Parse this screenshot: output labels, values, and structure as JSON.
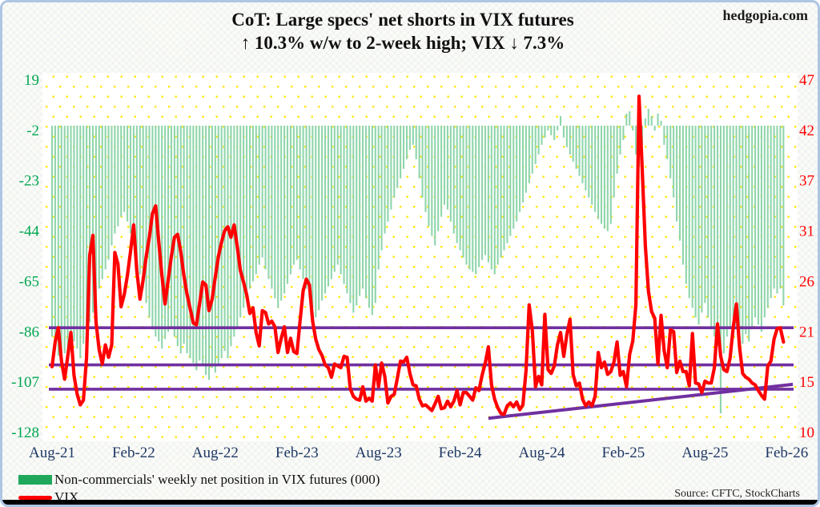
{
  "header": {
    "site": "hedgopia.com",
    "title_line1": "CoT: Large specs' net shorts in VIX futures",
    "title_line2": "↑ 10.3% w/w to 2-week high; VIX ↓ 7.3%"
  },
  "legend": {
    "series1_label": "Non-commercials' weekly net position in VIX futures (000)",
    "series2_label": "VIX"
  },
  "source_note": "Source: CFTC, StockCharts",
  "chart_data": {
    "type": "bar+line",
    "title": "CoT: Large specs' net shorts in VIX futures ↑ 10.3% w/w to 2-week high; VIX ↓ 7.3%",
    "x_tick_labels": [
      "Aug-21",
      "Feb-22",
      "Aug-22",
      "Feb-23",
      "Aug-23",
      "Feb-24",
      "Aug-24",
      "Feb-25",
      "Aug-25",
      "Feb-26"
    ],
    "x_tick_weeks": [
      0,
      26,
      52,
      78,
      104,
      130,
      156,
      182,
      208,
      234
    ],
    "x_label_color": "#1f3864",
    "left_axis": {
      "ticks": [
        19,
        -2,
        -23,
        -44,
        -65,
        -86,
        -107,
        -128
      ],
      "range": [
        19,
        -128
      ],
      "color": "#00a651",
      "series": "net_position"
    },
    "right_axis": {
      "ticks": [
        47,
        42,
        37,
        31,
        26,
        21,
        15,
        10
      ],
      "range": [
        47,
        10
      ],
      "color": "#ff0000",
      "series": "vix"
    },
    "grid": "yellow-dot-pattern",
    "legend_position": "bottom-left",
    "series": [
      {
        "name": "Non-commercials' weekly net position in VIX futures (000)",
        "type": "bar",
        "axis": "left",
        "color": "#8fd5ab",
        "values": [
          -88,
          -92,
          -96,
          -99,
          -95,
          -97,
          -93,
          -90,
          -93,
          -97,
          -91,
          -85,
          -82,
          -78,
          -72,
          -68,
          -64,
          -60,
          -56,
          -50,
          -45,
          -42,
          -38,
          -36,
          -40,
          -45,
          -50,
          -56,
          -62,
          -68,
          -74,
          -80,
          -85,
          -88,
          -90,
          -93,
          -89,
          -86,
          -84,
          -88,
          -92,
          -95,
          -91,
          -95,
          -97,
          -99,
          -102,
          -98,
          -100,
          -104,
          -106,
          -101,
          -103,
          -100,
          -97,
          -94,
          -97,
          -92,
          -88,
          -84,
          -80,
          -76,
          -72,
          -68,
          -65,
          -62,
          -58,
          -55,
          -60,
          -64,
          -68,
          -72,
          -76,
          -73,
          -70,
          -66,
          -62,
          -58,
          -56,
          -60,
          -64,
          -68,
          -72,
          -76,
          -80,
          -77,
          -73,
          -70,
          -67,
          -64,
          -61,
          -58,
          -62,
          -66,
          -70,
          -74,
          -78,
          -75,
          -71,
          -68,
          -72,
          -76,
          -79,
          -74,
          -60,
          -52,
          -45,
          -40,
          -35,
          -30,
          -26,
          -22,
          -18,
          -14,
          -10,
          -8,
          -14,
          -22,
          -30,
          -36,
          -42,
          -46,
          -50,
          -44,
          -38,
          -33,
          -35,
          -40,
          -45,
          -49,
          -52,
          -55,
          -58,
          -60,
          -61,
          -62,
          -59,
          -56,
          -54,
          -57,
          -60,
          -62,
          -58,
          -55,
          -52,
          -49,
          -46,
          -43,
          -40,
          -36,
          -32,
          -28,
          -24,
          -20,
          -16,
          -12,
          -8,
          -5,
          -2,
          -4,
          -6,
          -2,
          4,
          -5,
          -9,
          -12,
          -15,
          -18,
          -21,
          -24,
          -27,
          -30,
          -33,
          -36,
          -39,
          -41,
          -43,
          -44,
          -41,
          -30,
          -20,
          -12,
          -6,
          5,
          6,
          -2,
          -12,
          -17,
          -8,
          3,
          7,
          4,
          -2,
          5,
          2,
          -8,
          -14,
          -22,
          -30,
          -40,
          -48,
          -58,
          -66,
          -72,
          -76,
          -80,
          -83,
          -78,
          -74,
          -80,
          -85,
          -88,
          -92,
          -120,
          -95,
          -88,
          -84,
          -80,
          -85,
          -89,
          -91,
          -87,
          -90,
          -84,
          -80,
          -83,
          -86,
          -80,
          -76,
          -72,
          -68,
          -70,
          -68,
          -75
        ]
      },
      {
        "name": "VIX",
        "type": "line",
        "axis": "right",
        "color": "#ff0000",
        "values": [
          16.9,
          19.5,
          21.0,
          17.5,
          15.6,
          18.0,
          20.5,
          16.0,
          14.0,
          12.9,
          13.4,
          17.9,
          28.6,
          30.7,
          21.6,
          18.7,
          17.2,
          19.2,
          17.9,
          19.2,
          28.9,
          27.7,
          23.2,
          24.5,
          26.5,
          29.0,
          31.8,
          27.0,
          24.0,
          26.0,
          28.5,
          30.5,
          33.0,
          33.8,
          30.0,
          26.5,
          23.5,
          26.0,
          28.5,
          30.5,
          30.8,
          29.0,
          26.5,
          24.5,
          23.0,
          21.5,
          21.3,
          23.5,
          25.8,
          25.5,
          22.8,
          24.0,
          26.3,
          28.5,
          30.0,
          31.2,
          31.6,
          30.5,
          31.8,
          29.5,
          27.0,
          25.8,
          24.5,
          22.5,
          23.1,
          20.5,
          19.1,
          22.8,
          22.6,
          21.4,
          21.7,
          21.1,
          18.4,
          19.9,
          21.1,
          18.4,
          19.9,
          18.5,
          18.3,
          21.7,
          24.9,
          26.1,
          25.5,
          21.7,
          19.8,
          18.7,
          18.1,
          17.1,
          16.8,
          15.8,
          17.2,
          17.0,
          16.8,
          18.0,
          17.9,
          14.6,
          13.8,
          13.5,
          13.4,
          14.8,
          13.3,
          13.6,
          13.3,
          17.1,
          14.8,
          17.3,
          15.9,
          13.1,
          13.8,
          14.0,
          15.7,
          17.5,
          17.4,
          17.9,
          16.2,
          15.0,
          14.9,
          13.5,
          12.8,
          12.9,
          12.6,
          12.3,
          13.0,
          13.8,
          12.5,
          12.6,
          13.3,
          12.7,
          13.3,
          14.4,
          12.9,
          14.2,
          14.2,
          13.8,
          13.4,
          14.7,
          14.4,
          16.0,
          17.3,
          19.0,
          15.0,
          13.5,
          12.6,
          12.0,
          11.9,
          12.8,
          13.1,
          12.7,
          13.2,
          12.4,
          12.9,
          16.5,
          23.4,
          20.7,
          14.8,
          15.9,
          15.0,
          22.4,
          16.6,
          16.2,
          17.0,
          19.2,
          20.5,
          18.0,
          20.3,
          21.9,
          16.1,
          14.9,
          15.2,
          13.5,
          12.8,
          13.2,
          12.8,
          13.8,
          18.4,
          16.8,
          17.4,
          16.1,
          16.4,
          17.4,
          19.5,
          16.0,
          16.4,
          14.8,
          18.2,
          19.6,
          23.4,
          45.3,
          37.6,
          29.6,
          24.8,
          22.7,
          22.0,
          17.2,
          22.3,
          18.6,
          16.8,
          20.8,
          20.6,
          16.3,
          17.5,
          16.4,
          16.4,
          14.9,
          20.4,
          15.2,
          15.1,
          14.2,
          15.4,
          15.2,
          15.2,
          16.8,
          21.4,
          18.0,
          16.6,
          16.4,
          17.8,
          21.0,
          23.5,
          19.0,
          16.2,
          15.8,
          15.6,
          15.2,
          15.0,
          14.4,
          13.9,
          13.5,
          17.0,
          17.5,
          19.8,
          20.9,
          21.0,
          19.5
        ]
      }
    ],
    "support_resistance_lines": {
      "color": "#7030a0",
      "levels_vix": [
        21.0,
        17.1,
        14.55
      ]
    },
    "trendline": {
      "color": "#7030a0",
      "from": {
        "week": 139,
        "vix": 11.5
      },
      "to": {
        "week": 236,
        "vix": 15.05
      }
    }
  }
}
